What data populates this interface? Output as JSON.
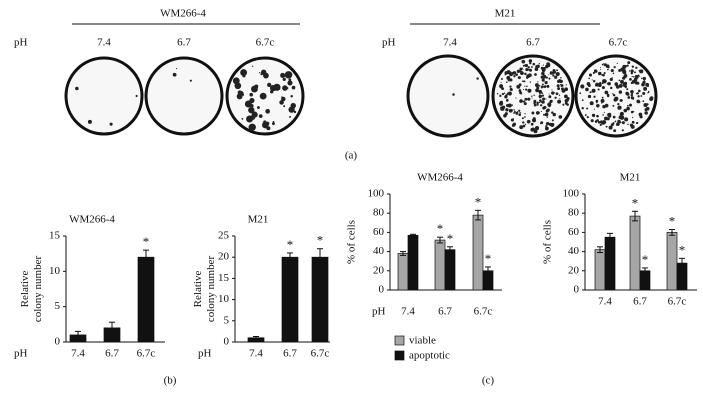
{
  "panel_a": {
    "groups": [
      {
        "title": "WM266-4",
        "ph_label": "pH",
        "conditions": [
          "7.4",
          "6.7",
          "6.7c"
        ]
      },
      {
        "title": "M21",
        "ph_label": "pH",
        "conditions": [
          "7.4",
          "6.7",
          "6.7c"
        ]
      }
    ],
    "label": "(a)"
  },
  "panel_labels": [
    "(b)",
    "(c)"
  ],
  "chart_data": [
    {
      "type": "bar",
      "title": "WM266-4",
      "ylabel": [
        "Relative",
        "colony number"
      ],
      "xlabel": "pH",
      "categories": [
        "7.4",
        "6.7",
        "6.7c"
      ],
      "ylim": [
        0,
        15
      ],
      "yticks": [
        0,
        5,
        10,
        15
      ],
      "series": [
        {
          "color": "#111111",
          "values": [
            1,
            2,
            12
          ],
          "errors": [
            0.5,
            0.8,
            1
          ],
          "markers": [
            null,
            null,
            "*"
          ]
        }
      ]
    },
    {
      "type": "bar",
      "title": "M21",
      "ylabel": [
        "Relative",
        "colony number"
      ],
      "xlabel": "pH",
      "categories": [
        "7.4",
        "6.7",
        "6.7c"
      ],
      "ylim": [
        0,
        25
      ],
      "yticks": [
        0,
        5,
        10,
        15,
        20,
        25
      ],
      "series": [
        {
          "color": "#111111",
          "values": [
            1,
            20,
            20
          ],
          "errors": [
            0.3,
            1,
            2
          ],
          "markers": [
            null,
            "*",
            "*"
          ]
        }
      ]
    },
    {
      "type": "bar",
      "title": "WM266-4",
      "ylabel": [
        "% of cells"
      ],
      "xlabel": "pH",
      "categories": [
        "7.4",
        "6.7",
        "6.7c"
      ],
      "ylim": [
        0,
        100
      ],
      "yticks": [
        0,
        20,
        40,
        60,
        80,
        100
      ],
      "legend": true,
      "series": [
        {
          "name": "viable",
          "color": "#a6a6a6",
          "values": [
            38,
            52,
            78
          ],
          "errors": [
            2,
            3,
            5
          ],
          "markers": [
            null,
            "*",
            "*"
          ]
        },
        {
          "name": "apoptotic",
          "color": "#111111",
          "values": [
            57,
            42,
            20
          ],
          "errors": [
            1,
            3,
            4
          ],
          "markers": [
            null,
            "*",
            "*"
          ]
        }
      ]
    },
    {
      "type": "bar",
      "title": "M21",
      "ylabel": [
        "% of cells"
      ],
      "categories": [
        "7.4",
        "6.7",
        "6.7c"
      ],
      "ylim": [
        0,
        100
      ],
      "yticks": [
        0,
        20,
        40,
        60,
        80,
        100
      ],
      "series": [
        {
          "color": "#a6a6a6",
          "values": [
            42,
            77,
            60
          ],
          "errors": [
            3,
            5,
            3
          ],
          "markers": [
            null,
            "*",
            "*"
          ]
        },
        {
          "color": "#111111",
          "values": [
            55,
            20,
            28
          ],
          "errors": [
            4,
            3,
            5
          ],
          "markers": [
            null,
            "*",
            "*"
          ]
        }
      ]
    }
  ]
}
